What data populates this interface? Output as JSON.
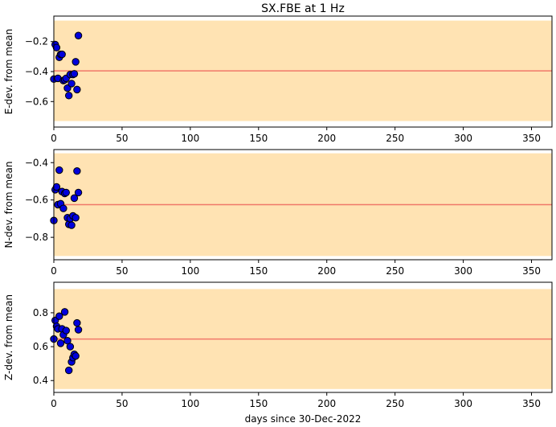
{
  "title": "SX.FBE at 1 Hz",
  "xlabel": "days since 30-Dec-2022",
  "colors": {
    "band_fill": "#ffe3b3",
    "mean_line": "#f0786a",
    "point_fill": "#0000dd",
    "point_edge": "#000000",
    "axis": "#000000"
  },
  "chart_data": [
    {
      "type": "scatter",
      "ylabel": "E-dev. from mean",
      "xlim": [
        0,
        365
      ],
      "ylim": [
        -0.77,
        -0.03
      ],
      "xticks": [
        0,
        50,
        100,
        150,
        200,
        250,
        300,
        350
      ],
      "yticks": [
        -0.2,
        -0.4,
        -0.6
      ],
      "ytick_labels": [
        "−0.2",
        "−0.4",
        "−0.6"
      ],
      "mean": -0.395,
      "band": [
        -0.73,
        -0.06
      ],
      "x": [
        0,
        1,
        2,
        3,
        4,
        5,
        6,
        7,
        8,
        9,
        10,
        11,
        12,
        13,
        14,
        15,
        16,
        17,
        18
      ],
      "y": [
        -0.45,
        -0.22,
        -0.24,
        -0.445,
        -0.305,
        -0.285,
        -0.285,
        -0.46,
        -0.455,
        -0.445,
        -0.51,
        -0.56,
        -0.42,
        -0.48,
        -0.42,
        -0.415,
        -0.335,
        -0.52,
        -0.16
      ]
    },
    {
      "type": "scatter",
      "ylabel": "N-dev. from mean",
      "xlim": [
        0,
        365
      ],
      "ylim": [
        -0.92,
        -0.33
      ],
      "xticks": [
        0,
        50,
        100,
        150,
        200,
        250,
        300,
        350
      ],
      "yticks": [
        -0.4,
        -0.6,
        -0.8
      ],
      "ytick_labels": [
        "−0.4",
        "−0.6",
        "−0.8"
      ],
      "mean": -0.625,
      "band": [
        -0.9,
        -0.35
      ],
      "x": [
        0,
        1,
        2,
        3,
        4,
        5,
        6,
        7,
        8,
        9,
        10,
        11,
        12,
        13,
        14,
        15,
        16,
        17,
        18
      ],
      "y": [
        -0.71,
        -0.545,
        -0.53,
        -0.625,
        -0.44,
        -0.62,
        -0.555,
        -0.645,
        -0.565,
        -0.56,
        -0.695,
        -0.73,
        -0.7,
        -0.735,
        -0.685,
        -0.59,
        -0.695,
        -0.445,
        -0.56
      ]
    },
    {
      "type": "scatter",
      "ylabel": "Z-dev. from mean",
      "xlim": [
        0,
        365
      ],
      "ylim": [
        0.33,
        0.98
      ],
      "xticks": [
        0,
        50,
        100,
        150,
        200,
        250,
        300,
        350
      ],
      "yticks": [
        0.4,
        0.6,
        0.8
      ],
      "ytick_labels": [
        "0.4",
        "0.6",
        "0.8"
      ],
      "mean": 0.645,
      "band": [
        0.35,
        0.94
      ],
      "x": [
        0,
        1,
        2,
        3,
        4,
        5,
        6,
        7,
        8,
        9,
        10,
        11,
        12,
        13,
        14,
        15,
        16,
        17,
        18
      ],
      "y": [
        0.645,
        0.755,
        0.72,
        0.705,
        0.78,
        0.62,
        0.705,
        0.67,
        0.805,
        0.695,
        0.635,
        0.46,
        0.6,
        0.51,
        0.535,
        0.555,
        0.545,
        0.74,
        0.7
      ]
    }
  ]
}
